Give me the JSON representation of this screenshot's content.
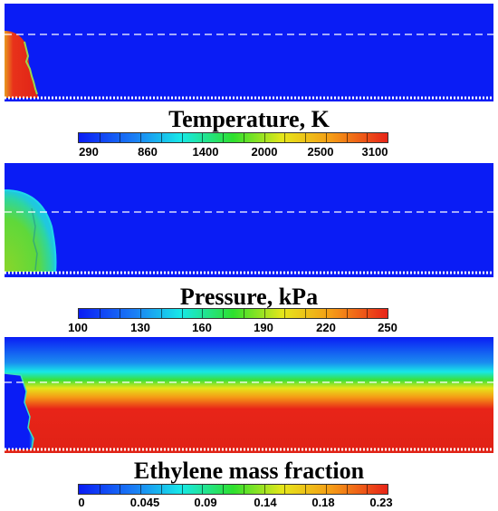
{
  "colors": {
    "low": "#0a1cf5",
    "cyan": "#17e8e8",
    "green": "#2ee02e",
    "yellow": "#e6e61a",
    "orange": "#f59a16",
    "high": "#e82418",
    "dashed_line": "#ffffff",
    "wall": "#ffffff"
  },
  "panels": [
    {
      "name": "temperature-panel",
      "colorbar": {
        "title": "Temperature, K",
        "ticks": [
          "290",
          "860",
          "1400",
          "2000",
          "2500",
          "3100"
        ]
      }
    },
    {
      "name": "pressure-panel",
      "colorbar": {
        "title": "Pressure, kPa",
        "ticks": [
          "100",
          "130",
          "160",
          "190",
          "220",
          "250"
        ]
      }
    },
    {
      "name": "ethylene-panel",
      "colorbar": {
        "title": "Ethylene mass fraction",
        "ticks": [
          "0",
          "0.045",
          "0.09",
          "0.14",
          "0.18",
          "0.23"
        ]
      }
    }
  ]
}
